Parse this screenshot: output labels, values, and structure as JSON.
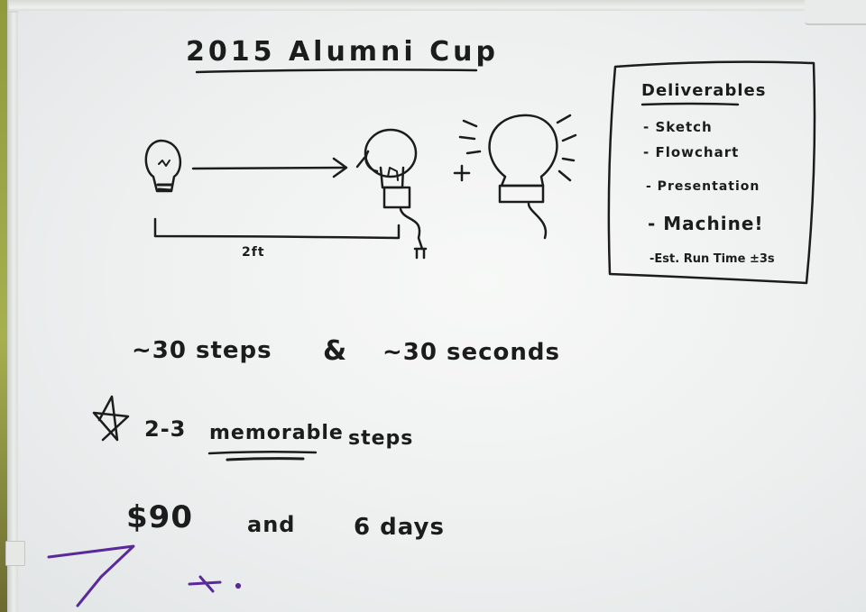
{
  "board": {
    "title": "2015 Alumni Cup",
    "diagram": {
      "distance_label": "2ft",
      "plus_sign": "+"
    },
    "deliverables": {
      "heading": "Deliverables",
      "items": [
        "- Sketch",
        "- Flowchart",
        "- Presentation",
        "- Machine!",
        "-Est. Run Time ±3s"
      ]
    },
    "notes": {
      "line1_steps": "~30 steps",
      "line1_amp": "&",
      "line1_seconds": "~30 seconds",
      "line2_star": "☆",
      "line2_prefix": "2-3",
      "line2_emphasis": "memorable",
      "line2_suffix": "steps",
      "line3_money": "$90",
      "line3_and": "and",
      "line3_days": "6 days"
    }
  },
  "colors": {
    "ink_black": "#1c1c1c",
    "ink_purple": "#5a2a9a",
    "board": "#f2f3f3"
  }
}
